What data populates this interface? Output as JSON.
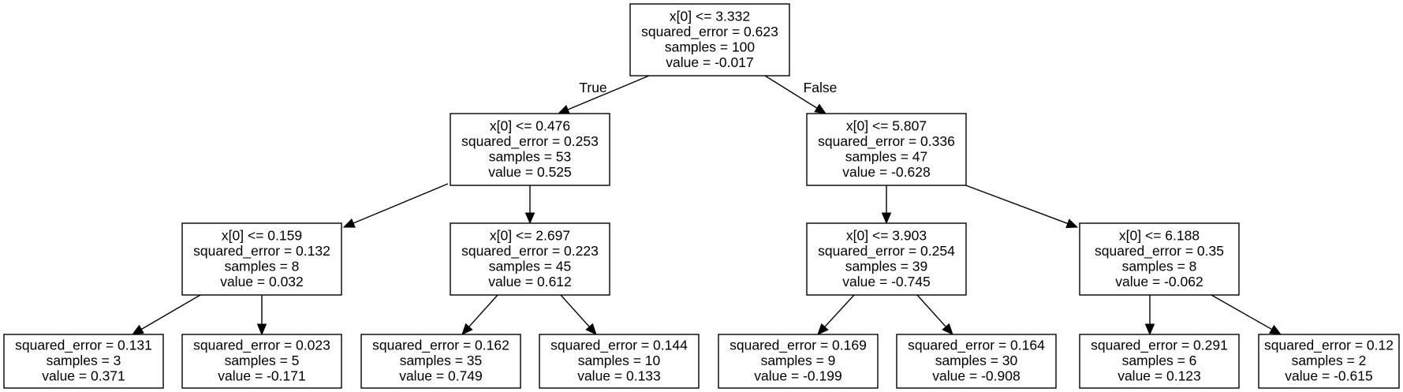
{
  "diagram": {
    "type": "decision-tree",
    "nodes": [
      {
        "id": "n0",
        "lines": [
          "x[0] <= 3.332",
          "squared_error = 0.623",
          "samples = 100",
          "value = -0.017"
        ]
      },
      {
        "id": "n1",
        "lines": [
          "x[0] <= 0.476",
          "squared_error = 0.253",
          "samples = 53",
          "value = 0.525"
        ]
      },
      {
        "id": "n2",
        "lines": [
          "x[0] <= 5.807",
          "squared_error = 0.336",
          "samples = 47",
          "value = -0.628"
        ]
      },
      {
        "id": "n3",
        "lines": [
          "x[0] <= 0.159",
          "squared_error = 0.132",
          "samples = 8",
          "value = 0.032"
        ]
      },
      {
        "id": "n4",
        "lines": [
          "x[0] <= 2.697",
          "squared_error = 0.223",
          "samples = 45",
          "value = 0.612"
        ]
      },
      {
        "id": "n5",
        "lines": [
          "x[0] <= 3.903",
          "squared_error = 0.254",
          "samples = 39",
          "value = -0.745"
        ]
      },
      {
        "id": "n6",
        "lines": [
          "x[0] <= 6.188",
          "squared_error = 0.35",
          "samples = 8",
          "value = -0.062"
        ]
      },
      {
        "id": "n7",
        "lines": [
          "squared_error = 0.131",
          "samples = 3",
          "value = 0.371"
        ]
      },
      {
        "id": "n8",
        "lines": [
          "squared_error = 0.023",
          "samples = 5",
          "value = -0.171"
        ]
      },
      {
        "id": "n9",
        "lines": [
          "squared_error = 0.162",
          "samples = 35",
          "value = 0.749"
        ]
      },
      {
        "id": "n10",
        "lines": [
          "squared_error = 0.144",
          "samples = 10",
          "value = 0.133"
        ]
      },
      {
        "id": "n11",
        "lines": [
          "squared_error = 0.169",
          "samples = 9",
          "value = -0.199"
        ]
      },
      {
        "id": "n12",
        "lines": [
          "squared_error = 0.164",
          "samples = 30",
          "value = -0.908"
        ]
      },
      {
        "id": "n13",
        "lines": [
          "squared_error = 0.291",
          "samples = 6",
          "value = 0.123"
        ]
      },
      {
        "id": "n14",
        "lines": [
          "squared_error = 0.12",
          "samples = 2",
          "value = -0.615"
        ]
      }
    ],
    "edges": [
      {
        "from": "n0",
        "to": "n1",
        "label": "True"
      },
      {
        "from": "n0",
        "to": "n2",
        "label": "False"
      },
      {
        "from": "n1",
        "to": "n3",
        "label": ""
      },
      {
        "from": "n1",
        "to": "n4",
        "label": ""
      },
      {
        "from": "n2",
        "to": "n5",
        "label": ""
      },
      {
        "from": "n2",
        "to": "n6",
        "label": ""
      },
      {
        "from": "n3",
        "to": "n7",
        "label": ""
      },
      {
        "from": "n3",
        "to": "n8",
        "label": ""
      },
      {
        "from": "n4",
        "to": "n9",
        "label": ""
      },
      {
        "from": "n4",
        "to": "n10",
        "label": ""
      },
      {
        "from": "n5",
        "to": "n11",
        "label": ""
      },
      {
        "from": "n5",
        "to": "n12",
        "label": ""
      },
      {
        "from": "n6",
        "to": "n13",
        "label": ""
      },
      {
        "from": "n6",
        "to": "n14",
        "label": ""
      }
    ],
    "colors": {
      "node_fill": "#ffffff",
      "stroke": "#000000",
      "text": "#000000",
      "background": "#ffffff"
    }
  }
}
